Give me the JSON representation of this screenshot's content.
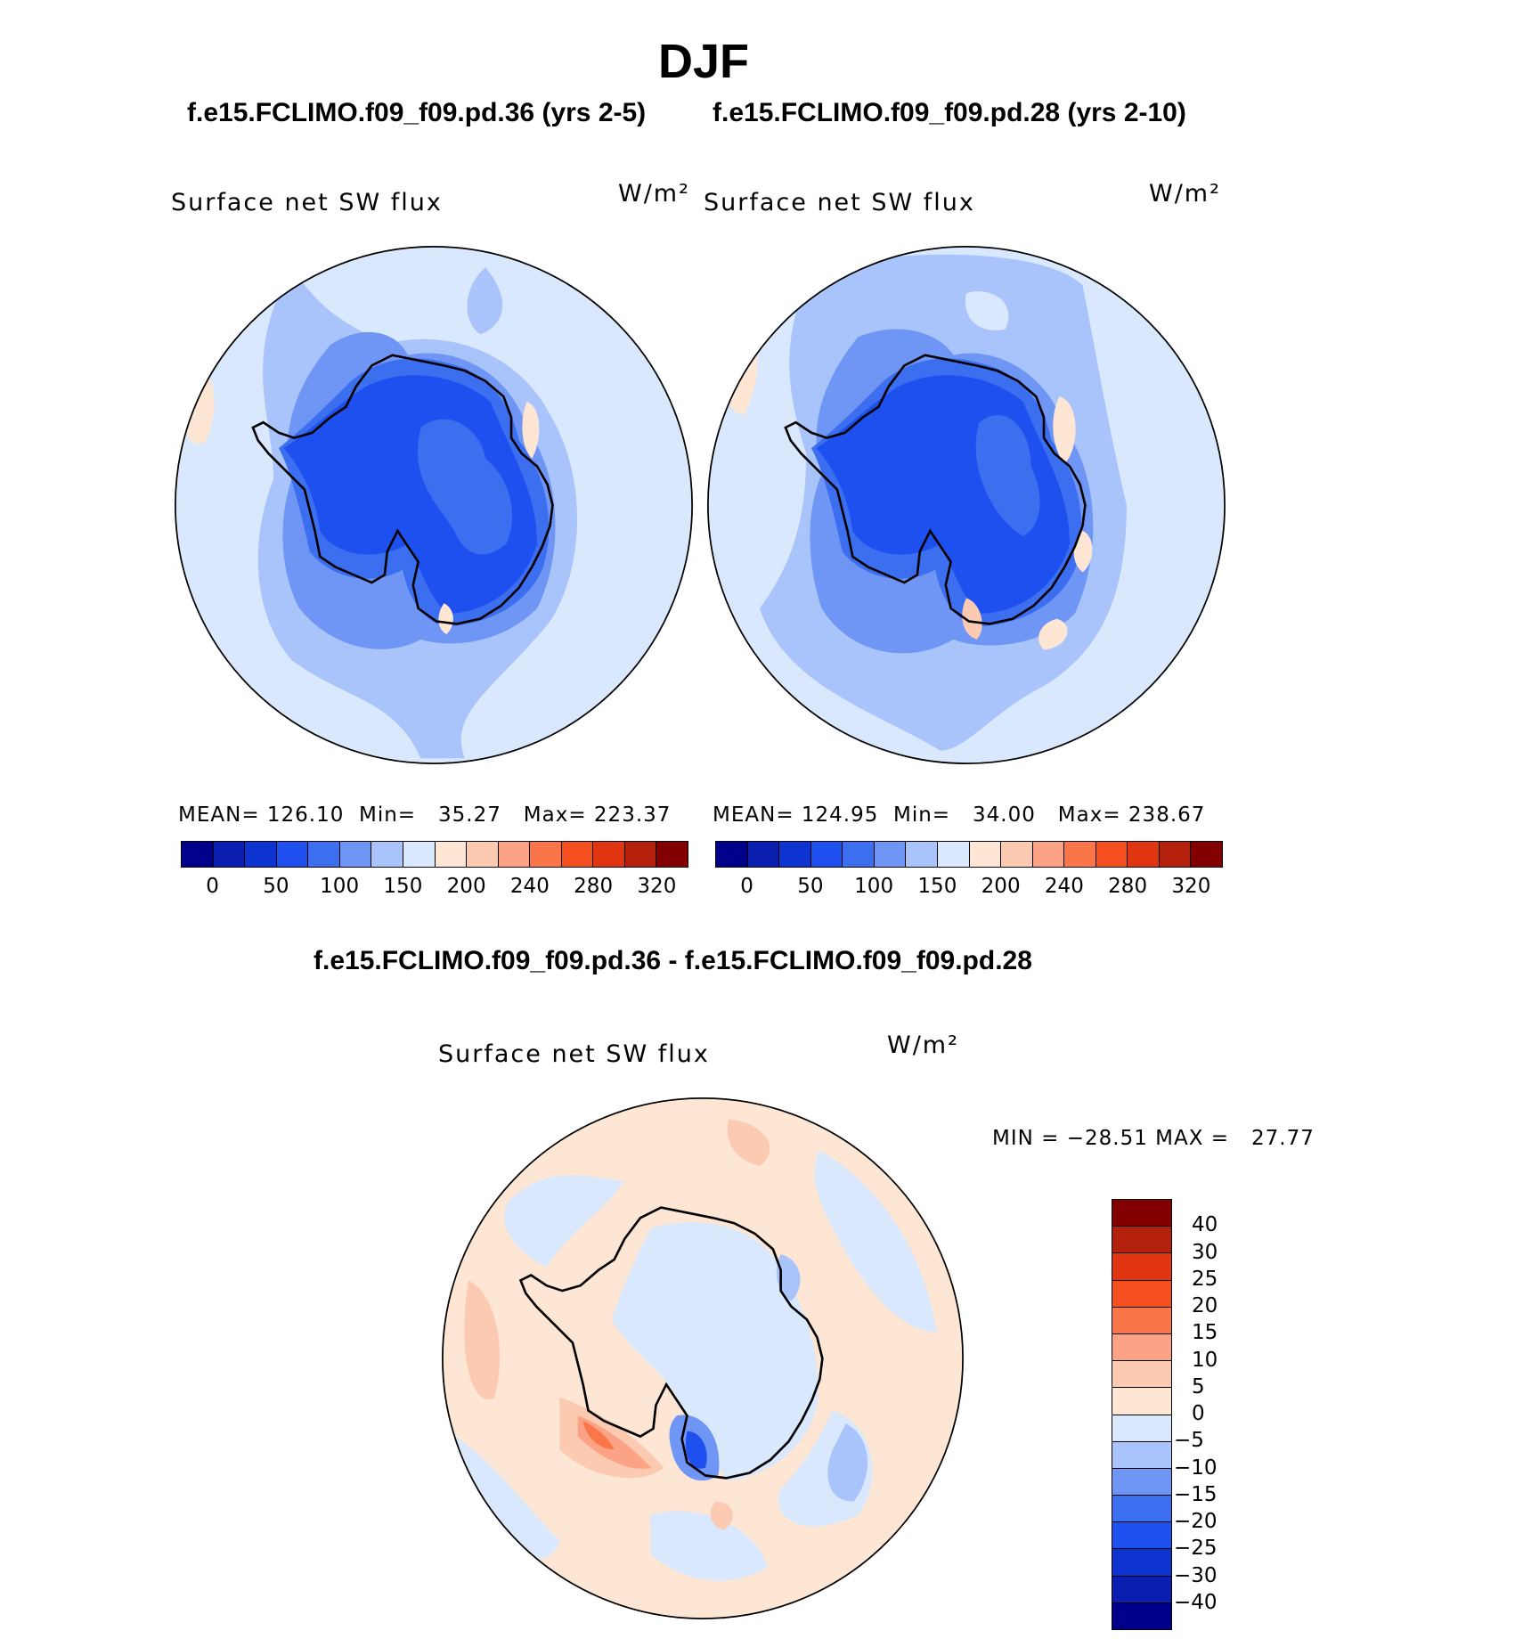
{
  "title": "DJF",
  "panels": [
    {
      "case": "f.e15.FCLIMO.f09_f09.pd.36 (yrs 2-5)",
      "variable": "Surface net SW flux",
      "units": "W/m²",
      "stats": "MEAN= 126.10  Min=   35.27   Max= 223.37"
    },
    {
      "case": "f.e15.FCLIMO.f09_f09.pd.28 (yrs 2-10)",
      "variable": "Surface net SW flux",
      "units": "W/m²",
      "stats": "MEAN= 124.95  Min=   34.00   Max= 238.67"
    }
  ],
  "difference": {
    "title": "f.e15.FCLIMO.f09_f09.pd.36 - f.e15.FCLIMO.f09_f09.pd.28",
    "variable": "Surface net SW flux",
    "units": "W/m²",
    "stats": "MIN = −28.51 MAX =   27.77"
  },
  "colorbar_abs": {
    "tick_labels": [
      "0",
      "50",
      "100",
      "150",
      "200",
      "240",
      "280",
      "320"
    ],
    "colors": [
      "#00008b",
      "#0a1fb0",
      "#0d34d0",
      "#1e50f0",
      "#3c6ef0",
      "#6f95f5",
      "#a9c4fa",
      "#d9e8fd",
      "#fde6d4",
      "#fcc9b1",
      "#fca285",
      "#fa7649",
      "#f64f1f",
      "#e03510",
      "#b3200b",
      "#820000"
    ]
  },
  "colorbar_diff": {
    "tick_labels": [
      "40",
      "30",
      "25",
      "20",
      "15",
      "10",
      "5",
      "0",
      "−5",
      "−10",
      "−15",
      "−20",
      "−25",
      "−30",
      "−40"
    ],
    "colors": [
      "#820000",
      "#b3200b",
      "#e03510",
      "#f64f1f",
      "#fa7649",
      "#fca285",
      "#fcc9b1",
      "#fde6d4",
      "#d9e8fd",
      "#a9c4fa",
      "#6f95f5",
      "#3c6ef0",
      "#1e50f0",
      "#0d34d0",
      "#0a1fb0",
      "#00008b"
    ]
  },
  "chart_data": {
    "type": "map",
    "projection": "south polar stereographic",
    "season": "DJF",
    "field": "Surface net SW flux",
    "panels": [
      {
        "case": "f.e15.FCLIMO.f09_f09.pd.36 (yrs 2-5)",
        "mean": 126.1,
        "min": 35.27,
        "max": 223.37
      },
      {
        "case": "f.e15.FCLIMO.f09_f09.pd.28 (yrs 2-10)",
        "mean": 124.95,
        "min": 34.0,
        "max": 238.67
      },
      {
        "case": "f.e15.FCLIMO.f09_f09.pd.36 - f.e15.FCLIMO.f09_f09.pd.28",
        "min": -28.51,
        "max": 27.77
      }
    ],
    "contour_levels_abs": [
      0,
      25,
      50,
      75,
      100,
      125,
      150,
      175,
      200,
      220,
      240,
      260,
      280,
      300,
      320
    ],
    "contour_levels_diff": [
      -40,
      -30,
      -25,
      -20,
      -15,
      -10,
      -5,
      0,
      5,
      10,
      15,
      20,
      25,
      30,
      40
    ]
  }
}
